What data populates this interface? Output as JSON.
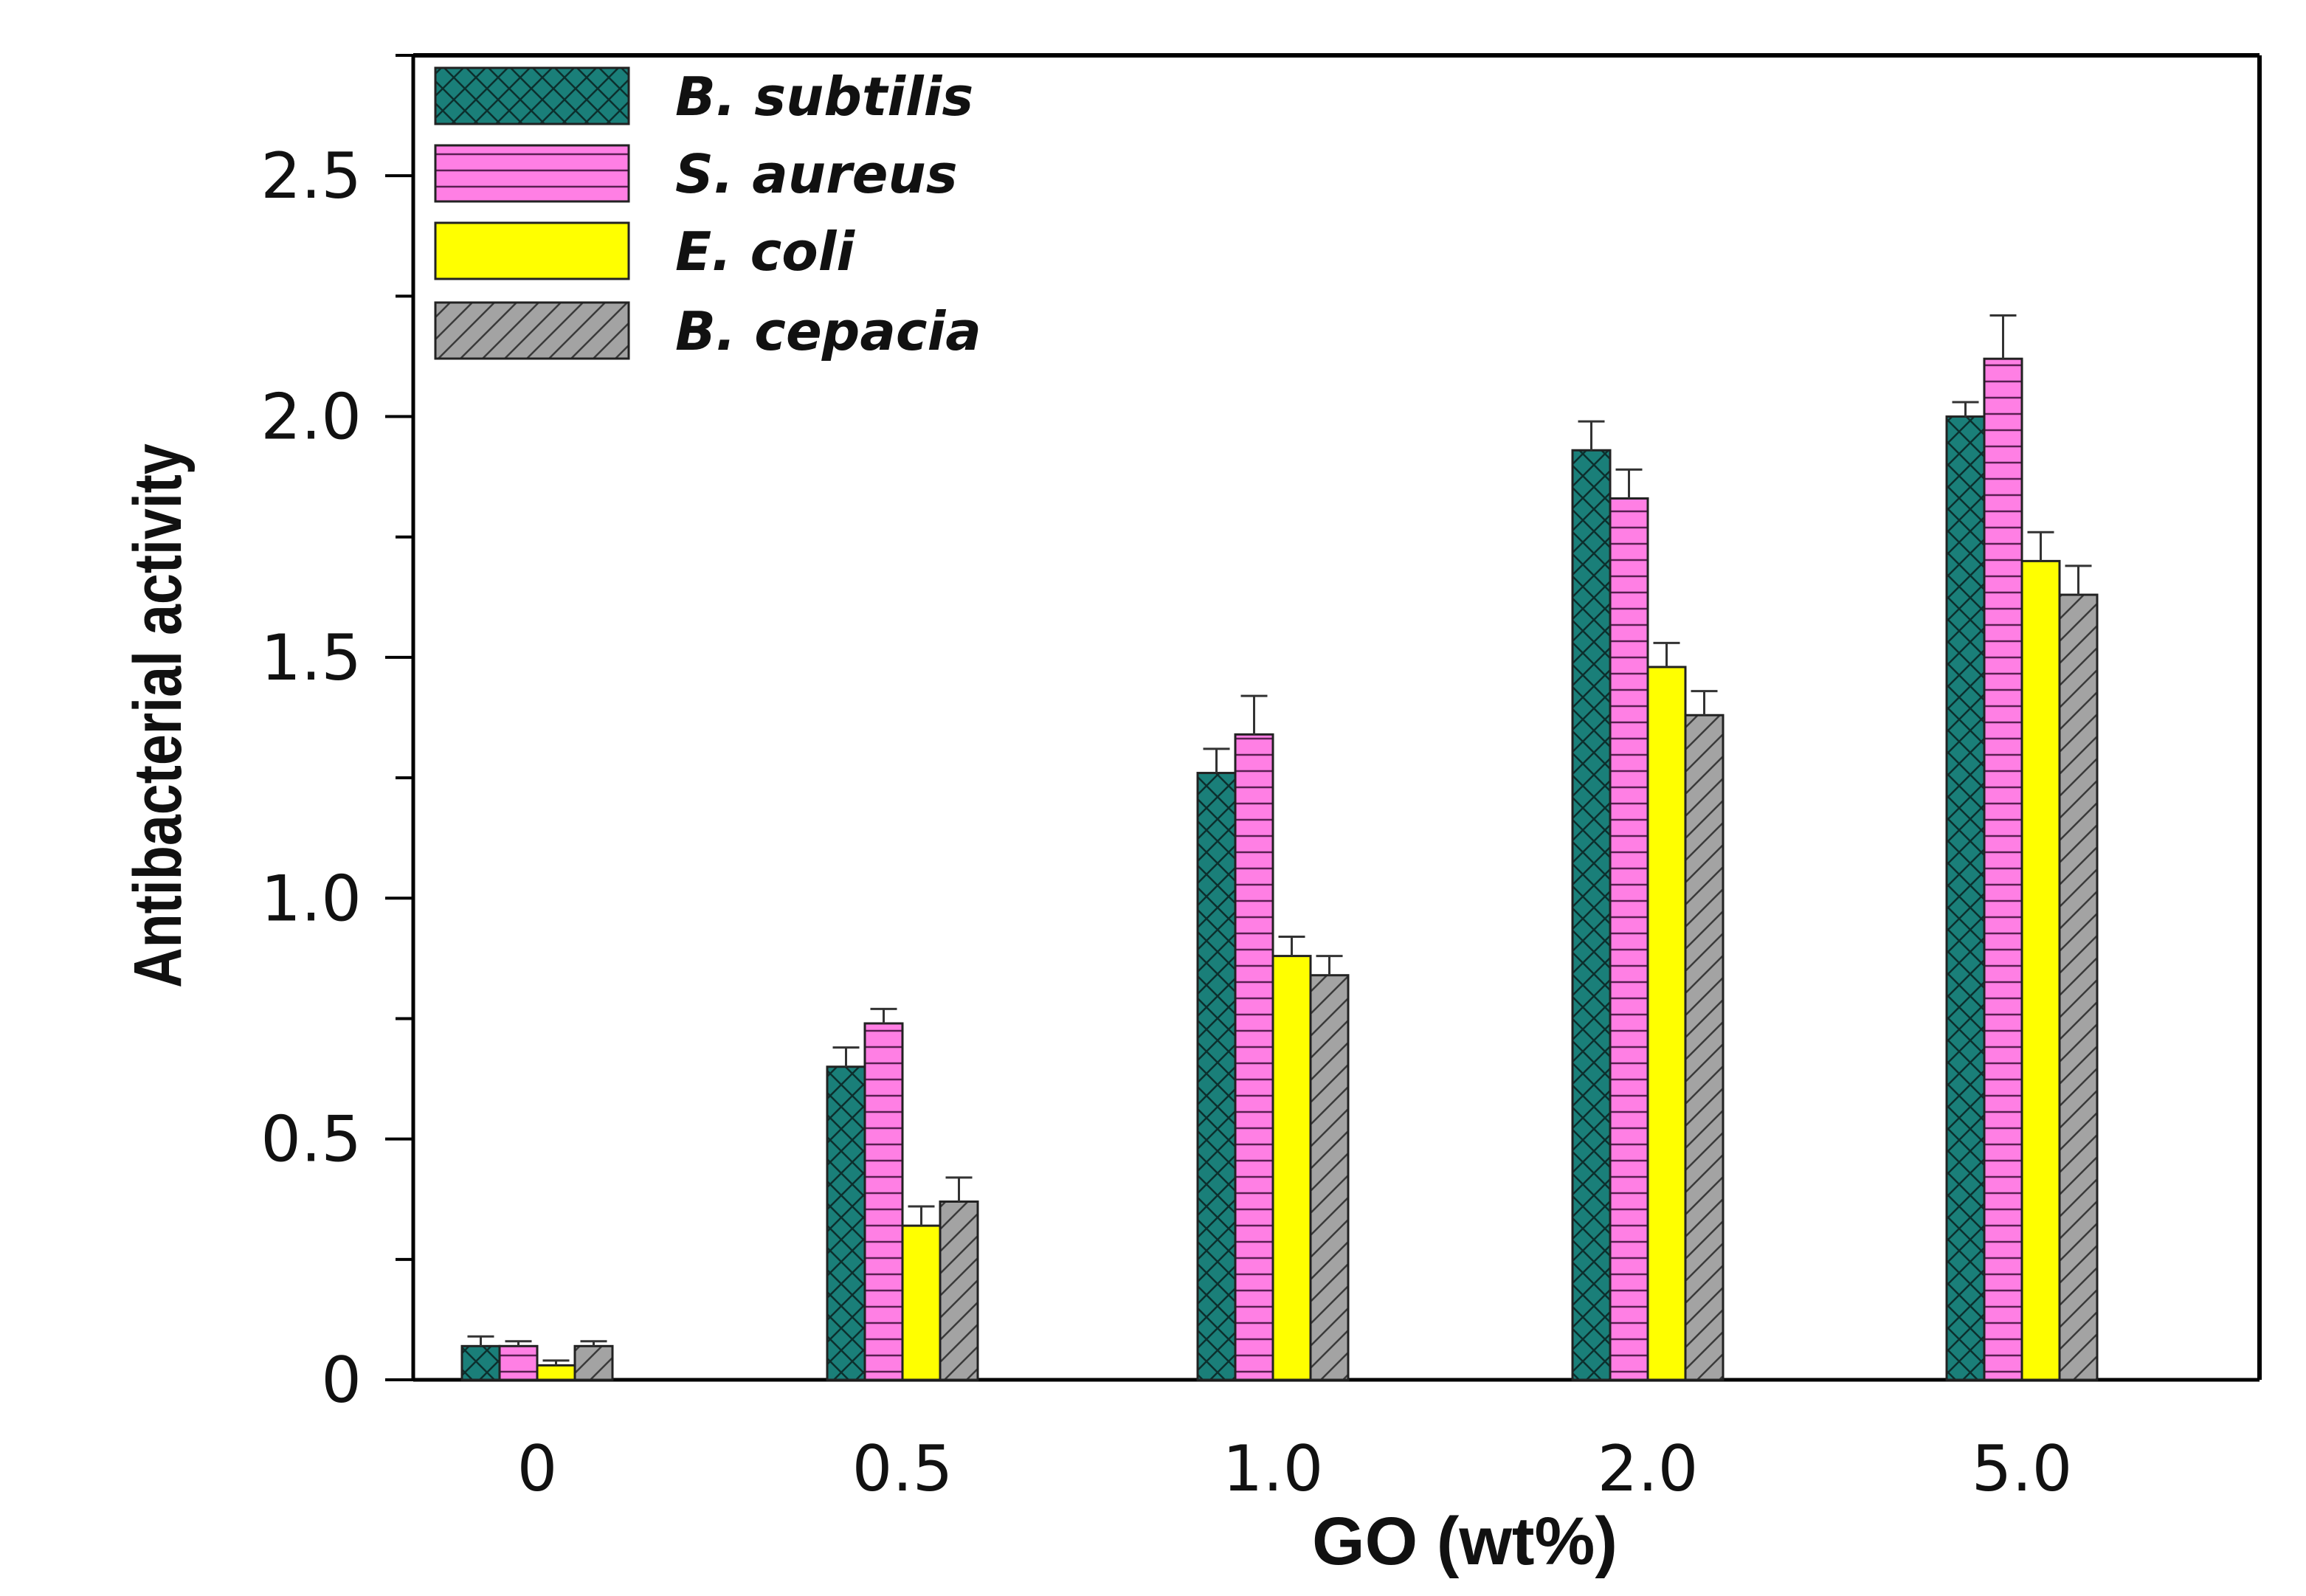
{
  "chart_data": {
    "type": "bar",
    "title": "",
    "xlabel": "GO (wt%)",
    "ylabel": "Antibacterial activity",
    "categories": [
      "0",
      "0.5",
      "1.0",
      "2.0",
      "5.0"
    ],
    "ylim": [
      0,
      2.75
    ],
    "yticks": [
      0,
      0.5,
      1.0,
      1.5,
      2.0,
      2.5
    ],
    "ytick_labels": [
      "0",
      "0.5",
      "1.0",
      "1.5",
      "2.0",
      "2.5"
    ],
    "grid": false,
    "legend_position": "top-left",
    "series": [
      {
        "name": "B. subtilis",
        "values": [
          0.07,
          0.65,
          1.26,
          1.93,
          2.0
        ],
        "errors": [
          0.02,
          0.04,
          0.05,
          0.06,
          0.03
        ],
        "color": "#1a7f79",
        "pattern": "crosshatch"
      },
      {
        "name": "S. aureus",
        "values": [
          0.07,
          0.74,
          1.34,
          1.83,
          2.12
        ],
        "errors": [
          0.01,
          0.03,
          0.08,
          0.06,
          0.09
        ],
        "color": "#ff7fe4",
        "pattern": "horizontal"
      },
      {
        "name": "E. coli",
        "values": [
          0.03,
          0.32,
          0.88,
          1.48,
          1.7
        ],
        "errors": [
          0.01,
          0.04,
          0.04,
          0.05,
          0.06
        ],
        "color": "#ffff00",
        "pattern": "none"
      },
      {
        "name": "B. cepacia",
        "values": [
          0.07,
          0.37,
          0.84,
          1.38,
          1.63
        ],
        "errors": [
          0.01,
          0.05,
          0.04,
          0.05,
          0.06
        ],
        "color": "#a3a3a3",
        "pattern": "diagonal"
      }
    ]
  }
}
